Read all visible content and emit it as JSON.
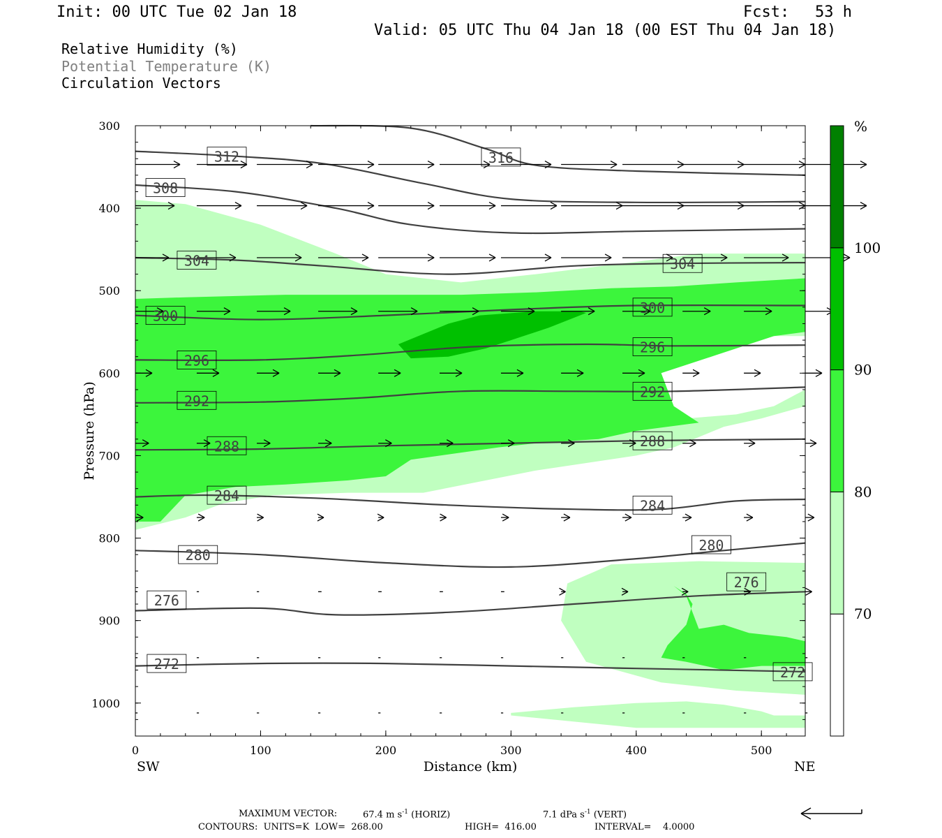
{
  "header": {
    "init": "Init: 00 UTC Tue 02 Jan 18",
    "fcst_label": "Fcst:",
    "fcst_value": "53 h",
    "valid": "Valid: 05 UTC Thu 04 Jan 18 (00 EST Thu 04 Jan 18)"
  },
  "legend": {
    "rh": "Relative Humidity (%)",
    "theta": "Potential Temperature (K)",
    "vectors": "Circulation Vectors"
  },
  "footer": {
    "max_vector_label": "MAXIMUM VECTOR:",
    "max_horiz": "67.4 m s",
    "horiz_tag": "(HORIZ)",
    "max_vert": "7.1 dPa s",
    "vert_tag": "(VERT)",
    "unit_exp": "-1",
    "contours": "CONTOURS:  UNITS=K  LOW=  268.00",
    "high": "HIGH=  416.00",
    "interval": "INTERVAL=    4.0000"
  },
  "colors": {
    "rh_70": "#c0ffc0",
    "rh_80": "#3cf53c",
    "rh_90": "#00c000",
    "rh_100": "#008000",
    "contour": "#404040"
  },
  "chart_data": {
    "type": "cross-section",
    "xlabel": "Distance (km)",
    "ylabel": "Pressure (hPa)",
    "xlim": [
      0,
      535
    ],
    "ylim": [
      1040,
      300
    ],
    "x_ticks": [
      0,
      100,
      200,
      300,
      400,
      500
    ],
    "y_ticks": [
      300,
      400,
      500,
      600,
      700,
      800,
      900,
      1000
    ],
    "x_end_labels": [
      "SW",
      "NE"
    ],
    "colorbar": {
      "unit": "%",
      "levels": [
        60,
        70,
        80,
        90,
        100,
        110
      ],
      "tick_labels": [
        70,
        80,
        90,
        100
      ]
    },
    "rh_regions": [
      {
        "level": 70,
        "points": [
          [
            0,
            390
          ],
          [
            40,
            395
          ],
          [
            100,
            420
          ],
          [
            160,
            455
          ],
          [
            200,
            480
          ],
          [
            260,
            490
          ],
          [
            320,
            480
          ],
          [
            400,
            465
          ],
          [
            450,
            455
          ],
          [
            535,
            455
          ],
          [
            535,
            830
          ],
          [
            450,
            828
          ],
          [
            380,
            832
          ],
          [
            345,
            855
          ],
          [
            340,
            900
          ],
          [
            360,
            950
          ],
          [
            420,
            975
          ],
          [
            480,
            985
          ],
          [
            535,
            990
          ],
          [
            535,
            1030
          ],
          [
            400,
            1030
          ],
          [
            300,
            1015
          ],
          [
            535,
            1015
          ],
          [
            535,
            555
          ],
          [
            460,
            555
          ],
          [
            420,
            570
          ],
          [
            410,
            640
          ],
          [
            440,
            655
          ],
          [
            480,
            650
          ],
          [
            510,
            640
          ],
          [
            535,
            620
          ],
          [
            535,
            640
          ],
          [
            500,
            655
          ],
          [
            470,
            665
          ],
          [
            430,
            690
          ],
          [
            400,
            700
          ],
          [
            320,
            718
          ],
          [
            280,
            730
          ],
          [
            230,
            745
          ],
          [
            170,
            745
          ],
          [
            110,
            748
          ],
          [
            70,
            758
          ],
          [
            40,
            775
          ],
          [
            0,
            790
          ]
        ]
      },
      {
        "level": 80,
        "points": [
          [
            0,
            510
          ],
          [
            40,
            508
          ],
          [
            120,
            505
          ],
          [
            200,
            505
          ],
          [
            260,
            505
          ],
          [
            320,
            502
          ],
          [
            380,
            497
          ],
          [
            430,
            495
          ],
          [
            480,
            490
          ],
          [
            535,
            485
          ],
          [
            535,
            550
          ],
          [
            510,
            555
          ],
          [
            460,
            580
          ],
          [
            420,
            600
          ],
          [
            430,
            640
          ],
          [
            450,
            660
          ],
          [
            400,
            670
          ],
          [
            370,
            680
          ],
          [
            320,
            685
          ],
          [
            290,
            690
          ],
          [
            220,
            705
          ],
          [
            200,
            725
          ],
          [
            170,
            730
          ],
          [
            120,
            735
          ],
          [
            80,
            738
          ],
          [
            40,
            748
          ],
          [
            20,
            780
          ],
          [
            0,
            780
          ]
        ]
      },
      {
        "level": 80,
        "points": [
          [
            430,
            858
          ],
          [
            440,
            870
          ],
          [
            450,
            910
          ],
          [
            470,
            905
          ],
          [
            490,
            915
          ],
          [
            520,
            920
          ],
          [
            535,
            925
          ],
          [
            535,
            955
          ],
          [
            500,
            955
          ],
          [
            470,
            960
          ],
          [
            440,
            950
          ],
          [
            420,
            945
          ],
          [
            425,
            930
          ],
          [
            440,
            905
          ],
          [
            445,
            880
          ],
          [
            440,
            868
          ]
        ]
      },
      {
        "level": 90,
        "points": [
          [
            210,
            565
          ],
          [
            250,
            540
          ],
          [
            275,
            530
          ],
          [
            320,
            525
          ],
          [
            355,
            525
          ],
          [
            360,
            527
          ],
          [
            330,
            545
          ],
          [
            300,
            560
          ],
          [
            280,
            570
          ],
          [
            250,
            580
          ],
          [
            220,
            582
          ]
        ]
      },
      {
        "level": 70,
        "points": [
          [
            300,
            1012
          ],
          [
            350,
            1005
          ],
          [
            400,
            1000
          ],
          [
            440,
            998
          ],
          [
            470,
            1002
          ],
          [
            500,
            1010
          ],
          [
            510,
            1015
          ],
          [
            300,
            1015
          ]
        ]
      }
    ],
    "theta_contours": [
      {
        "value": 272,
        "points": [
          [
            0,
            955
          ],
          [
            100,
            952
          ],
          [
            200,
            952
          ],
          [
            300,
            955
          ],
          [
            400,
            958
          ],
          [
            535,
            962
          ]
        ],
        "label_at": [
          [
            25,
            952
          ],
          [
            525,
            962
          ]
        ]
      },
      {
        "value": 276,
        "points": [
          [
            0,
            888
          ],
          [
            100,
            885
          ],
          [
            160,
            893
          ],
          [
            250,
            890
          ],
          [
            350,
            880
          ],
          [
            450,
            870
          ],
          [
            535,
            865
          ]
        ],
        "label_at": [
          [
            25,
            875
          ],
          [
            488,
            853
          ]
        ]
      },
      {
        "value": 280,
        "points": [
          [
            0,
            815
          ],
          [
            100,
            820
          ],
          [
            200,
            830
          ],
          [
            300,
            835
          ],
          [
            400,
            825
          ],
          [
            470,
            815
          ],
          [
            535,
            806
          ]
        ],
        "label_at": [
          [
            50,
            820
          ],
          [
            460,
            808
          ]
        ]
      },
      {
        "value": 284,
        "points": [
          [
            0,
            750
          ],
          [
            60,
            748
          ],
          [
            150,
            752
          ],
          [
            250,
            760
          ],
          [
            350,
            765
          ],
          [
            420,
            765
          ],
          [
            480,
            755
          ],
          [
            535,
            753
          ]
        ],
        "label_at": [
          [
            73,
            748
          ],
          [
            413,
            760
          ]
        ]
      },
      {
        "value": 288,
        "points": [
          [
            0,
            693
          ],
          [
            100,
            692
          ],
          [
            200,
            688
          ],
          [
            300,
            685
          ],
          [
            400,
            682
          ],
          [
            535,
            680
          ]
        ],
        "label_at": [
          [
            73,
            688
          ],
          [
            413,
            682
          ]
        ]
      },
      {
        "value": 292,
        "points": [
          [
            0,
            636
          ],
          [
            100,
            635
          ],
          [
            180,
            630
          ],
          [
            260,
            622
          ],
          [
            350,
            622
          ],
          [
            430,
            622
          ],
          [
            535,
            617
          ]
        ],
        "label_at": [
          [
            49,
            633
          ],
          [
            413,
            622
          ]
        ]
      },
      {
        "value": 296,
        "points": [
          [
            0,
            584
          ],
          [
            100,
            584
          ],
          [
            180,
            578
          ],
          [
            270,
            568
          ],
          [
            360,
            565
          ],
          [
            430,
            567
          ],
          [
            535,
            566
          ]
        ],
        "label_at": [
          [
            49,
            584
          ],
          [
            413,
            568
          ]
        ]
      },
      {
        "value": 300,
        "points": [
          [
            0,
            530
          ],
          [
            100,
            535
          ],
          [
            200,
            530
          ],
          [
            300,
            523
          ],
          [
            400,
            518
          ],
          [
            535,
            518
          ]
        ],
        "label_at": [
          [
            24,
            530
          ],
          [
            413,
            520
          ]
        ]
      },
      {
        "value": 304,
        "points": [
          [
            0,
            460
          ],
          [
            80,
            463
          ],
          [
            150,
            470
          ],
          [
            250,
            480
          ],
          [
            350,
            470
          ],
          [
            430,
            467
          ],
          [
            535,
            466
          ]
        ],
        "label_at": [
          [
            49,
            463
          ],
          [
            437,
            467
          ]
        ]
      },
      {
        "value": 308,
        "points": [
          [
            0,
            372
          ],
          [
            80,
            380
          ],
          [
            160,
            400
          ],
          [
            220,
            420
          ],
          [
            300,
            430
          ],
          [
            400,
            428
          ],
          [
            535,
            425
          ]
        ],
        "label_at": [
          [
            24,
            375
          ]
        ]
      },
      {
        "value": 312,
        "points": [
          [
            0,
            331
          ],
          [
            80,
            337
          ],
          [
            150,
            346
          ],
          [
            230,
            370
          ],
          [
            300,
            389
          ],
          [
            400,
            393
          ],
          [
            535,
            392
          ]
        ],
        "label_at": [
          [
            73,
            337
          ]
        ]
      },
      {
        "value": 316,
        "points": [
          [
            140,
            300
          ],
          [
            220,
            303
          ],
          [
            280,
            328
          ],
          [
            320,
            348
          ],
          [
            400,
            355
          ],
          [
            535,
            360
          ]
        ],
        "label_at": [
          [
            292,
            338
          ]
        ]
      }
    ],
    "vector_rows": [
      {
        "p": 347,
        "u": [
          40,
          45,
          50,
          50,
          50,
          45,
          45,
          50,
          55,
          55,
          55,
          55,
          55
        ]
      },
      {
        "p": 397,
        "u": [
          35,
          40,
          45,
          50,
          50,
          50,
          50,
          55,
          55,
          55,
          55,
          55,
          55
        ]
      },
      {
        "p": 460,
        "u": [
          30,
          35,
          40,
          45,
          50,
          50,
          45,
          45,
          45,
          40,
          40,
          40,
          35
        ]
      },
      {
        "p": 525,
        "u": [
          25,
          30,
          30,
          35,
          35,
          35,
          30,
          30,
          25,
          25,
          25,
          25,
          25
        ]
      },
      {
        "p": 600,
        "u": [
          15,
          20,
          20,
          20,
          20,
          20,
          20,
          20,
          20,
          15,
          15,
          15,
          15
        ]
      },
      {
        "p": 685,
        "u": [
          12,
          12,
          12,
          12,
          12,
          12,
          12,
          12,
          12,
          12,
          10,
          10,
          10
        ]
      },
      {
        "p": 775,
        "u": [
          7,
          7,
          6,
          5,
          5,
          6,
          7,
          8,
          8,
          8,
          8,
          8,
          8
        ]
      },
      {
        "p": 865,
        "u": [
          2,
          2,
          2,
          3,
          3,
          3,
          3,
          4,
          5,
          5,
          6,
          6,
          6
        ]
      },
      {
        "p": 945,
        "u": [
          2,
          2,
          2,
          2,
          2,
          2,
          2,
          2,
          2,
          2,
          2,
          2,
          2
        ]
      },
      {
        "p": 1012,
        "u": [
          2,
          2,
          2,
          2,
          2,
          2,
          2,
          2,
          2,
          2,
          2,
          2,
          2
        ]
      }
    ],
    "vector_x": [
      0,
      49,
      97,
      146,
      194,
      243,
      292,
      340,
      389,
      437,
      486,
      535,
      535
    ]
  }
}
